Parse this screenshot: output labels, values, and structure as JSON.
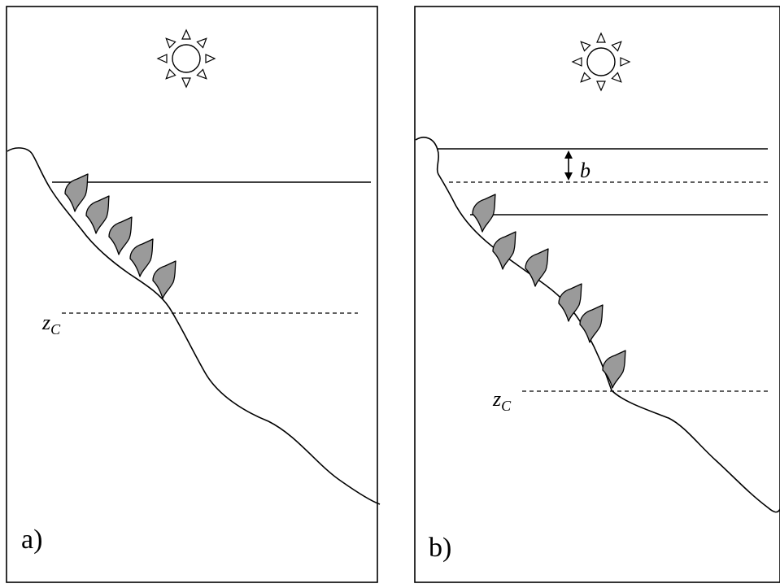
{
  "panels": {
    "a": {
      "label": "a)",
      "depth_label_z": "z",
      "depth_label_sub": "C"
    },
    "b": {
      "label": "b)",
      "depth_label_z": "z",
      "depth_label_sub": "C",
      "offset_label": "b"
    }
  }
}
